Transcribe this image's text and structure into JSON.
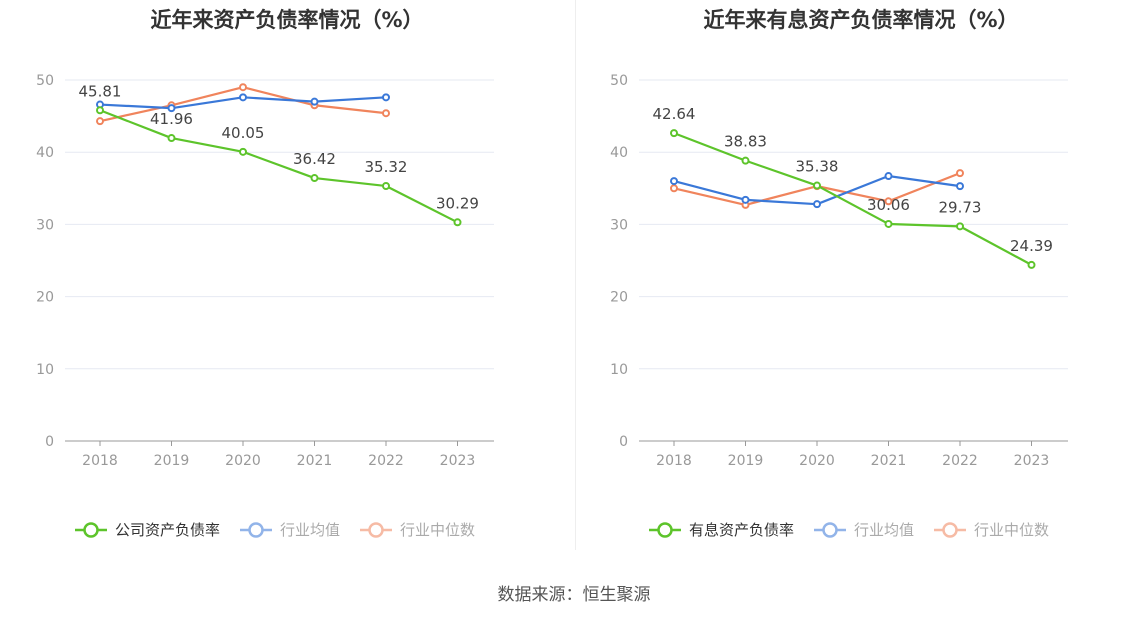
{
  "source": "数据来源：恒生聚源",
  "chart_data": [
    {
      "type": "line",
      "title": "近年来资产负债率情况（%）",
      "categories": [
        "2018",
        "2019",
        "2020",
        "2021",
        "2022",
        "2023"
      ],
      "ylim": [
        0,
        50
      ],
      "yticks": [
        0,
        10,
        20,
        30,
        40,
        50
      ],
      "grid": true,
      "legend_position": "bottom",
      "series": [
        {
          "name": "公司资产负债率",
          "color": "#5dc42b",
          "labeled": true,
          "values": [
            45.81,
            41.96,
            40.05,
            36.42,
            35.32,
            30.29
          ]
        },
        {
          "name": "行业均值",
          "color": "#3a78d8",
          "labeled": false,
          "values": [
            46.6,
            46.1,
            47.6,
            47.0,
            47.6,
            null
          ]
        },
        {
          "name": "行业中位数",
          "color": "#f0845c",
          "labeled": false,
          "values": [
            44.3,
            46.5,
            49.0,
            46.5,
            45.4,
            null
          ]
        }
      ]
    },
    {
      "type": "line",
      "title": "近年来有息资产负债率情况（%）",
      "categories": [
        "2018",
        "2019",
        "2020",
        "2021",
        "2022",
        "2023"
      ],
      "ylim": [
        0,
        50
      ],
      "yticks": [
        0,
        10,
        20,
        30,
        40,
        50
      ],
      "grid": true,
      "legend_position": "bottom",
      "series": [
        {
          "name": "有息资产负债率",
          "color": "#5dc42b",
          "labeled": true,
          "values": [
            42.64,
            38.83,
            35.38,
            30.06,
            29.73,
            24.39
          ]
        },
        {
          "name": "行业均值",
          "color": "#3a78d8",
          "labeled": false,
          "values": [
            36.0,
            33.4,
            32.8,
            36.7,
            35.3,
            null
          ]
        },
        {
          "name": "行业中位数",
          "color": "#f0845c",
          "labeled": false,
          "values": [
            35.0,
            32.7,
            35.3,
            33.2,
            37.1,
            null
          ]
        }
      ]
    }
  ]
}
